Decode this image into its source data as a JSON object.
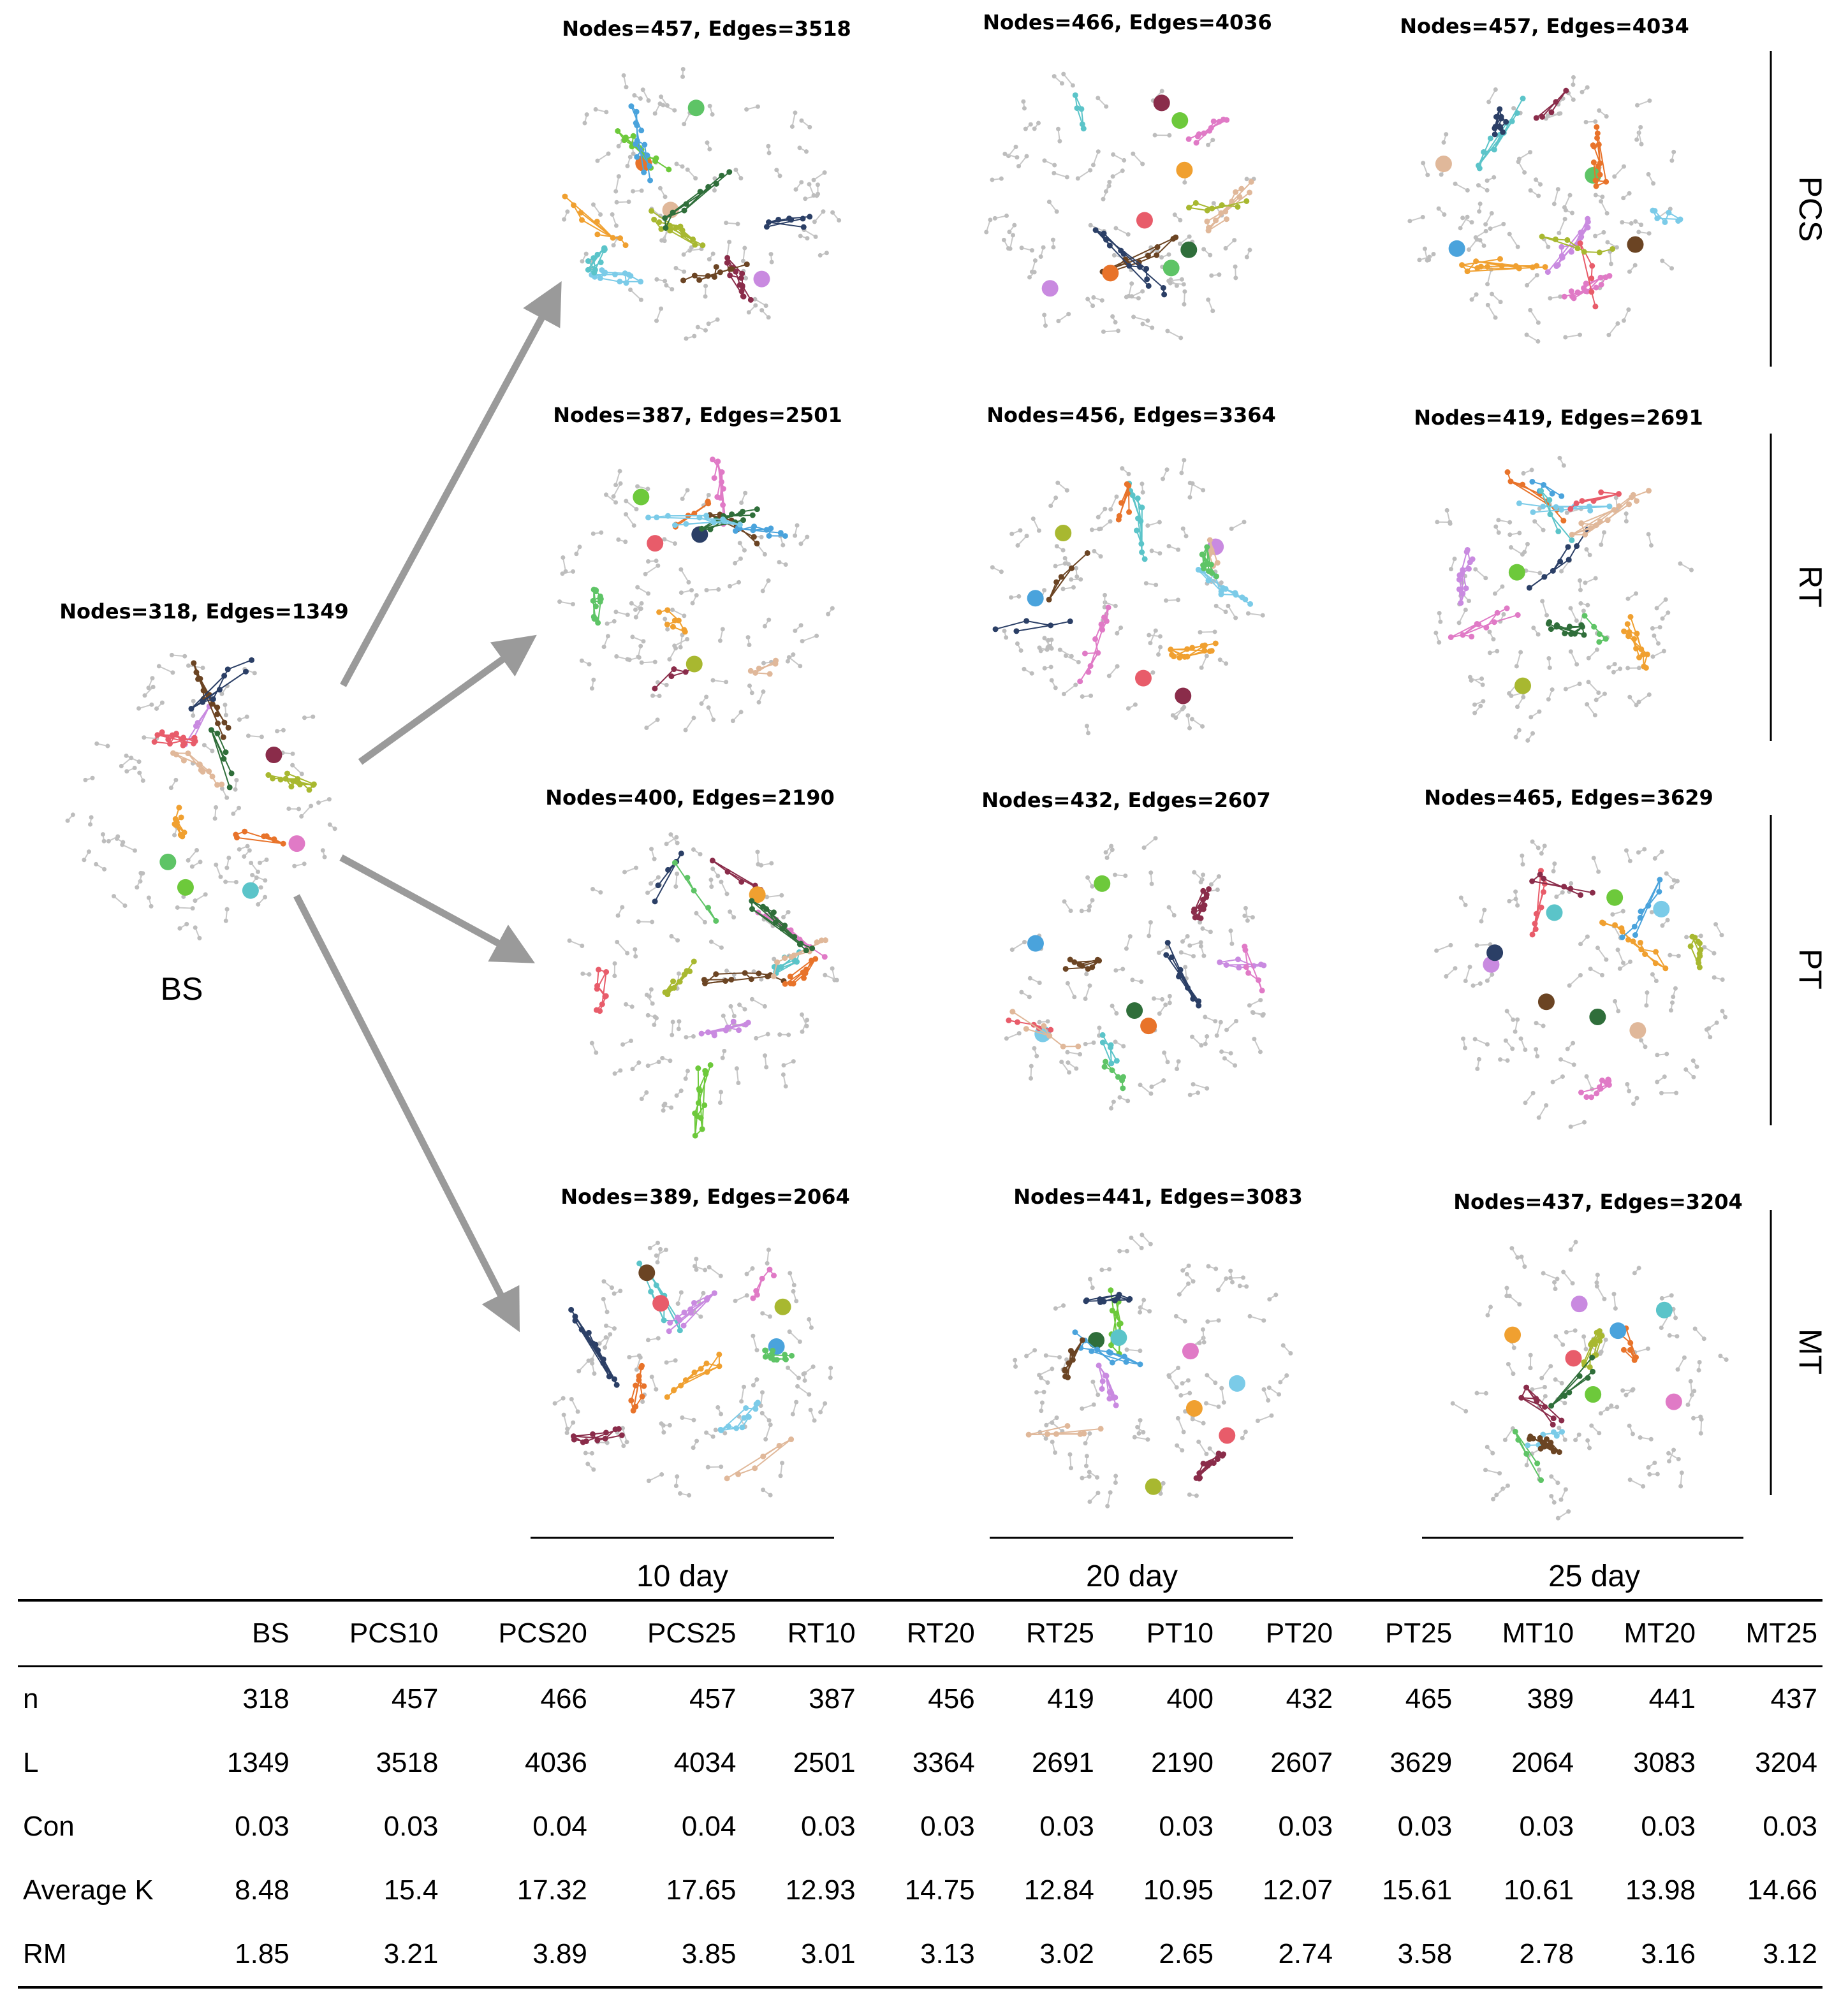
{
  "baseline": {
    "id": "BS",
    "label": "BS",
    "title": "Nodes=318, Edges=1349"
  },
  "row_labels": [
    "PCS",
    "RT",
    "PT",
    "MT"
  ],
  "column_labels": [
    "10 day",
    "20 day",
    "25 day"
  ],
  "networks": [
    {
      "id": "PCS10",
      "title": "Nodes=457, Edges=3518"
    },
    {
      "id": "PCS20",
      "title": "Nodes=466, Edges=4036"
    },
    {
      "id": "PCS25",
      "title": "Nodes=457, Edges=4034"
    },
    {
      "id": "RT10",
      "title": "Nodes=387, Edges=2501"
    },
    {
      "id": "RT20",
      "title": "Nodes=456, Edges=3364"
    },
    {
      "id": "RT25",
      "title": "Nodes=419, Edges=2691"
    },
    {
      "id": "PT10",
      "title": "Nodes=400, Edges=2190"
    },
    {
      "id": "PT20",
      "title": "Nodes=432, Edges=2607"
    },
    {
      "id": "PT25",
      "title": "Nodes=465, Edges=3629"
    },
    {
      "id": "MT10",
      "title": "Nodes=389, Edges=2064"
    },
    {
      "id": "MT20",
      "title": "Nodes=441, Edges=3083"
    },
    {
      "id": "MT25",
      "title": "Nodes=437, Edges=3204"
    }
  ],
  "module_colors": [
    "#e8732a",
    "#f0a030",
    "#a8b830",
    "#6dc93b",
    "#2f6e3a",
    "#4aa3dc",
    "#7bcbe8",
    "#5bc4c9",
    "#c98ae0",
    "#e07ac6",
    "#e85c6a",
    "#8a2c4a",
    "#6b4423",
    "#2b3f66",
    "#e0b89a",
    "#5ec466"
  ],
  "table": {
    "columns": [
      "",
      "BS",
      "PCS10",
      "PCS20",
      "PCS25",
      "RT10",
      "RT20",
      "RT25",
      "PT10",
      "PT20",
      "PT25",
      "MT10",
      "MT20",
      "MT25"
    ],
    "rows": [
      [
        "n",
        "318",
        "457",
        "466",
        "457",
        "387",
        "456",
        "419",
        "400",
        "432",
        "465",
        "389",
        "441",
        "437"
      ],
      [
        "L",
        "1349",
        "3518",
        "4036",
        "4034",
        "2501",
        "3364",
        "2691",
        "2190",
        "2607",
        "3629",
        "2064",
        "3083",
        "3204"
      ],
      [
        "Con",
        "0.03",
        "0.03",
        "0.04",
        "0.04",
        "0.03",
        "0.03",
        "0.03",
        "0.03",
        "0.03",
        "0.03",
        "0.03",
        "0.03",
        "0.03"
      ],
      [
        "Average K",
        "8.48",
        "15.4",
        "17.32",
        "17.65",
        "12.93",
        "14.75",
        "12.84",
        "10.95",
        "12.07",
        "15.61",
        "10.61",
        "13.98",
        "14.66"
      ],
      [
        "RM",
        "1.85",
        "3.21",
        "3.89",
        "3.85",
        "3.01",
        "3.13",
        "3.02",
        "2.65",
        "2.74",
        "3.58",
        "2.78",
        "3.16",
        "3.12"
      ]
    ]
  }
}
